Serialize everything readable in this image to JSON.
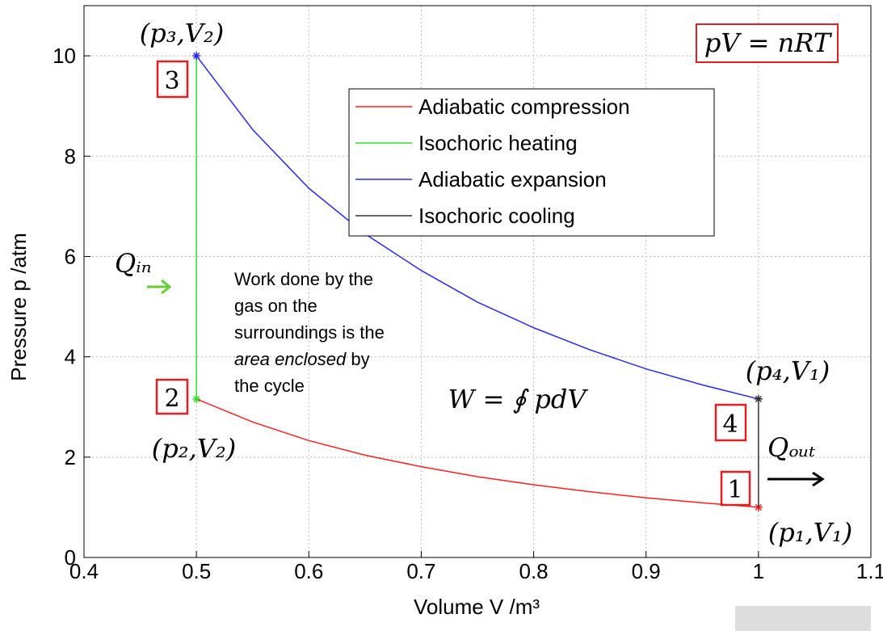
{
  "chart_data": {
    "type": "line",
    "xlabel": "Volume V /m³",
    "ylabel": "Pressure p /atm",
    "xlim": [
      0.4,
      1.1
    ],
    "ylim": [
      0,
      11
    ],
    "xticks": [
      0.4,
      0.5,
      0.6,
      0.7,
      0.8,
      0.9,
      1,
      1.1
    ],
    "yticks": [
      0,
      2,
      4,
      6,
      8,
      10
    ],
    "grid": true,
    "legend": "upper right",
    "series": [
      {
        "name": "Adiabatic compression",
        "color": "#ff2020",
        "x": [
          1.0,
          0.95,
          0.9,
          0.85,
          0.8,
          0.75,
          0.7,
          0.65,
          0.6,
          0.55,
          0.5
        ],
        "values": [
          1,
          1.09,
          1.19,
          1.31,
          1.45,
          1.61,
          1.81,
          2.04,
          2.33,
          2.7,
          3.16
        ]
      },
      {
        "name": "Isochoric heating",
        "color": "#33dd33",
        "x": [
          0.5,
          0.5
        ],
        "values": [
          3.16,
          10
        ]
      },
      {
        "name": "Adiabatic expansion",
        "color": "#2a2aee",
        "x": [
          0.5,
          0.55,
          0.6,
          0.65,
          0.7,
          0.75,
          0.8,
          0.85,
          0.9,
          0.95,
          1.0
        ],
        "values": [
          10,
          8.53,
          7.36,
          6.45,
          5.72,
          5.09,
          4.58,
          4.14,
          3.76,
          3.44,
          3.16
        ]
      },
      {
        "name": "Isochoric cooling",
        "color": "#333333",
        "x": [
          1,
          1
        ],
        "values": [
          3.16,
          1
        ]
      }
    ],
    "annotations": {
      "state3": "(p₃,V₂)",
      "state2": "(p₂,V₂)",
      "state4": "(p₄,V₁)",
      "state1": "(p₁,V₁)",
      "box3": "3",
      "box2": "2",
      "box4": "4",
      "box1": "1",
      "gas_law": "pV = nRT",
      "q_in": "Qᵢₙ",
      "q_out": "Qₒᵤₜ",
      "work_formula": "W = ∮ pdV",
      "work_text": [
        [
          {
            "text": "Work done by the"
          }
        ],
        [
          {
            "text": "gas on the"
          }
        ],
        [
          {
            "text": "surroundings is the"
          }
        ],
        [
          {
            "text": "area enclosed",
            "italic": true
          },
          {
            "text": " by"
          }
        ],
        [
          {
            "text": "the cycle"
          }
        ]
      ]
    }
  }
}
